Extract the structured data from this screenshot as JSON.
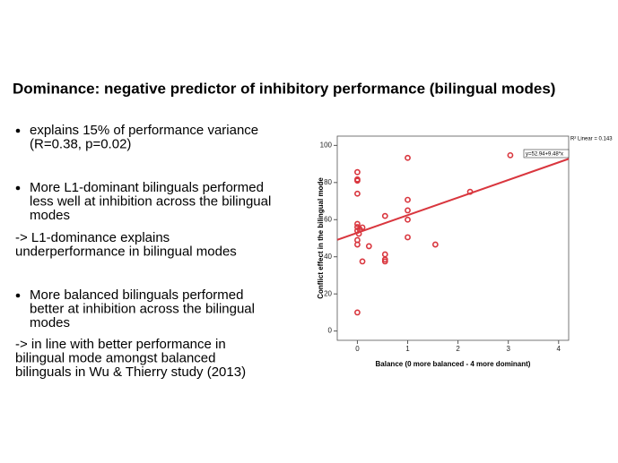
{
  "title": "Dominance: negative predictor of inhibitory performance (bilingual modes)",
  "bullets": [
    [
      "explains 15% of performance variance",
      "(R=0.38, p=0.02)"
    ],
    [
      "More L1-dominant bilinguals performed",
      "less well at inhibition across the bilingual",
      "modes"
    ],
    [
      "More balanced bilinguals performed",
      "better at inhibition across the bilingual",
      "modes"
    ]
  ],
  "notes": [
    [
      "-> L1-dominance explains",
      "underperformance in bilingual modes"
    ],
    [
      "-> in line with better performance in",
      "bilingual mode amongst balanced",
      "bilinguals in Wu & Thierry study (2013)"
    ]
  ],
  "chart_data": {
    "type": "scatter",
    "x_label": "Balance (0 more balanced - 4 more dominant)",
    "y_label": "Conflict effect in the bilingual mode",
    "annotation": "R² Linear = 0.143",
    "fit_label": "y=52.94+9.48*x",
    "fit": {
      "intercept": 52.94,
      "slope": 9.48
    },
    "color": "#d9363e",
    "x": [
      0,
      0,
      0,
      0,
      0,
      0,
      0.05,
      0.1,
      0,
      0.03,
      0,
      0,
      0.1,
      0.23,
      0,
      0.55,
      0.55,
      0.55,
      0.55,
      1,
      1,
      1,
      1,
      1,
      1.55,
      2.24,
      3.04
    ],
    "y": [
      85.6,
      81.7,
      81,
      74,
      57.7,
      56,
      54.8,
      55.8,
      54,
      52.4,
      49,
      46.6,
      37.5,
      45.7,
      10,
      62,
      41.3,
      37.5,
      38.5,
      93.3,
      70.7,
      65,
      60,
      50.5,
      46.6,
      75,
      94.7
    ],
    "xlim": [
      -0.4,
      4.2
    ],
    "ylim": [
      -5,
      105
    ],
    "xticks": [
      0,
      1,
      2,
      3,
      4
    ],
    "yticks": [
      0,
      20,
      40,
      60,
      80,
      100
    ]
  }
}
